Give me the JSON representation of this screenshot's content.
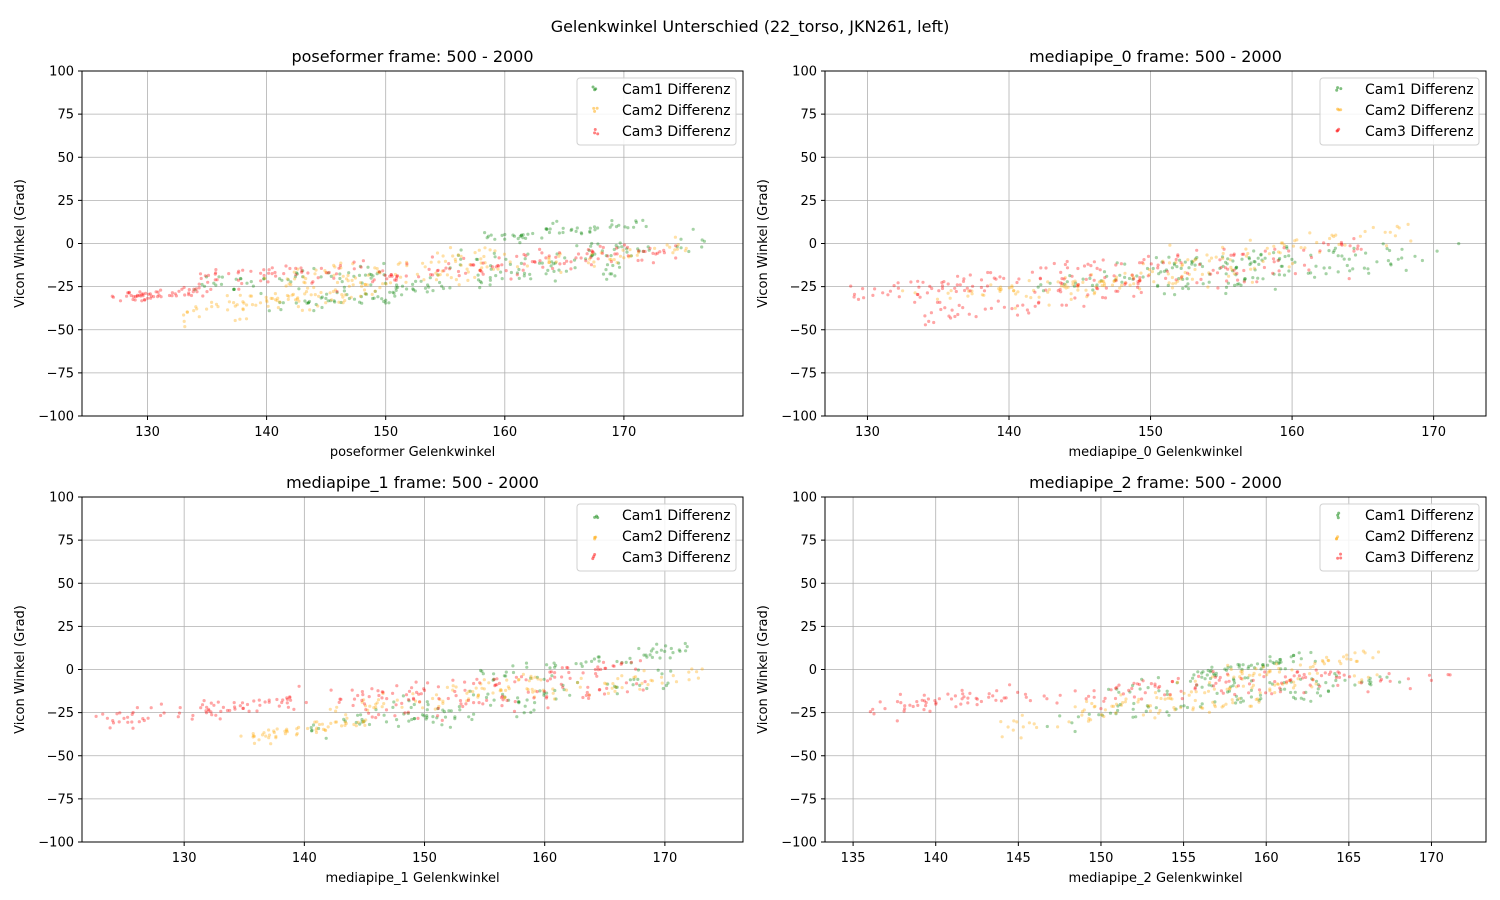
{
  "figure": {
    "suptitle": "Gelenkwinkel Unterschied (22_torso, JKN261, left)"
  },
  "chart_data": [
    {
      "type": "scatter",
      "title": "poseformer frame: 500 - 2000",
      "xlabel": "poseformer Gelenkwinkel",
      "ylabel": "Vicon Winkel (Grad)",
      "xlim": [
        124.5,
        180
      ],
      "ylim": [
        -100,
        100
      ],
      "xticks": [
        130,
        140,
        150,
        160,
        170
      ],
      "yticks": [
        -100,
        -75,
        -50,
        -25,
        0,
        25,
        50,
        75,
        100
      ],
      "grid": true,
      "legend_placement": "upper-right",
      "series": [
        {
          "name": "Cam1 Differenz",
          "color": "#008000",
          "bands": [
            [
              134,
              -23,
              150,
              -18,
              7
            ],
            [
              148,
              -29,
              170,
              -12,
              7
            ],
            [
              155,
              -12,
              177,
              0,
              6
            ],
            [
              158,
              2,
              172,
              12,
              5
            ],
            [
              140,
              -38,
              155,
              -25,
              5
            ]
          ]
        },
        {
          "name": "Cam2 Differenz",
          "color": "#FFA500",
          "bands": [
            [
              132,
              -42,
              150,
              -28,
              7
            ],
            [
              135,
              -36,
              155,
              -18,
              6
            ],
            [
              140,
              -22,
              160,
              -4,
              6
            ],
            [
              155,
              -18,
              176,
              -2,
              6
            ]
          ]
        },
        {
          "name": "Cam3 Differenz",
          "color": "#FF0000",
          "bands": [
            [
              127,
              -31,
              135,
              -28,
              3
            ],
            [
              134,
              -22,
              150,
              -12,
              6
            ],
            [
              145,
              -24,
              175,
              -4,
              7
            ],
            [
              150,
              -18,
              172,
              -2,
              5
            ]
          ]
        }
      ]
    },
    {
      "type": "scatter",
      "title": "mediapipe_0 frame: 500 - 2000",
      "xlabel": "mediapipe_0 Gelenkwinkel",
      "ylabel": "Vicon Winkel (Grad)",
      "xlim": [
        127,
        173.7
      ],
      "ylim": [
        -100,
        100
      ],
      "xticks": [
        130,
        140,
        150,
        160,
        170
      ],
      "yticks": [
        -100,
        -75,
        -50,
        -25,
        0,
        25,
        50,
        75,
        100
      ],
      "grid": true,
      "legend_placement": "upper-right",
      "series": [
        {
          "name": "Cam1 Differenz",
          "color": "#008000",
          "bands": [
            [
              142,
              -25,
              160,
              -8,
              8
            ],
            [
              148,
              -14,
              172,
              -2,
              7
            ],
            [
              150,
              -28,
              170,
              -8,
              6
            ]
          ]
        },
        {
          "name": "Cam2 Differenz",
          "color": "#FFA500",
          "bands": [
            [
              133,
              -32,
              150,
              -20,
              6
            ],
            [
              140,
              -30,
              160,
              -12,
              7
            ],
            [
              150,
              -12,
              169,
              8,
              6
            ]
          ]
        },
        {
          "name": "Cam3 Differenz",
          "color": "#FF0000",
          "bands": [
            [
              129,
              -30,
              140,
              -20,
              7
            ],
            [
              134,
              -42,
              150,
              -25,
              7
            ],
            [
              140,
              -24,
              165,
              -14,
              7
            ],
            [
              142,
              -14,
              165,
              -2,
              6
            ]
          ]
        }
      ]
    },
    {
      "type": "scatter",
      "title": "mediapipe_1 frame: 500 - 2000",
      "xlabel": "mediapipe_1 Gelenkwinkel",
      "ylabel": "Vicon Winkel (Grad)",
      "xlim": [
        121.5,
        176.5
      ],
      "ylim": [
        -100,
        100
      ],
      "xticks": [
        130,
        140,
        150,
        160,
        170
      ],
      "yticks": [
        -100,
        -75,
        -50,
        -25,
        0,
        25,
        50,
        75,
        100
      ],
      "grid": true,
      "legend_placement": "upper-right",
      "series": [
        {
          "name": "Cam1 Differenz",
          "color": "#008000",
          "bands": [
            [
              140,
              -35,
              160,
              -20,
              7
            ],
            [
              145,
              -25,
              174,
              0,
              8
            ],
            [
              155,
              -4,
              172,
              12,
              6
            ]
          ]
        },
        {
          "name": "Cam2 Differenz",
          "color": "#FFA500",
          "bands": [
            [
              135,
              -40,
              145,
              -30,
              5
            ],
            [
              142,
              -25,
              160,
              -6,
              7
            ],
            [
              150,
              -20,
              174,
              -2,
              6
            ]
          ]
        },
        {
          "name": "Cam3 Differenz",
          "color": "#FF0000",
          "bands": [
            [
              123,
              -30,
              135,
              -22,
              5
            ],
            [
              134,
              -22,
              150,
              -12,
              6
            ],
            [
              145,
              -26,
              168,
              -10,
              7
            ],
            [
              148,
              -14,
              168,
              2,
              6
            ]
          ]
        }
      ]
    },
    {
      "type": "scatter",
      "title": "mediapipe_2 frame: 500 - 2000",
      "xlabel": "mediapipe_2 Gelenkwinkel",
      "ylabel": "Vicon Winkel (Grad)",
      "xlim": [
        133.3,
        173.3
      ],
      "ylim": [
        -100,
        100
      ],
      "xticks": [
        135,
        140,
        145,
        150,
        155,
        160,
        165,
        170
      ],
      "yticks": [
        -100,
        -75,
        -50,
        -25,
        0,
        25,
        50,
        75,
        100
      ],
      "grid": true,
      "legend_placement": "upper-right",
      "series": [
        {
          "name": "Cam1 Differenz",
          "color": "#008000",
          "bands": [
            [
              146,
              -30,
              164,
              -12,
              7
            ],
            [
              150,
              -12,
              168,
              -4,
              6
            ],
            [
              155,
              -4,
              163,
              8,
              4
            ]
          ]
        },
        {
          "name": "Cam2 Differenz",
          "color": "#FFA500",
          "bands": [
            [
              144,
              -33,
              160,
              -18,
              7
            ],
            [
              148,
              -22,
              167,
              -4,
              6
            ],
            [
              155,
              -8,
              167,
              8,
              5
            ]
          ]
        },
        {
          "name": "Cam3 Differenz",
          "color": "#FF0000",
          "bands": [
            [
              135,
              -24,
              145,
              -14,
              6
            ],
            [
              145,
              -20,
              171,
              -4,
              6
            ],
            [
              150,
              -10,
              165,
              -2,
              5
            ]
          ]
        }
      ]
    }
  ]
}
